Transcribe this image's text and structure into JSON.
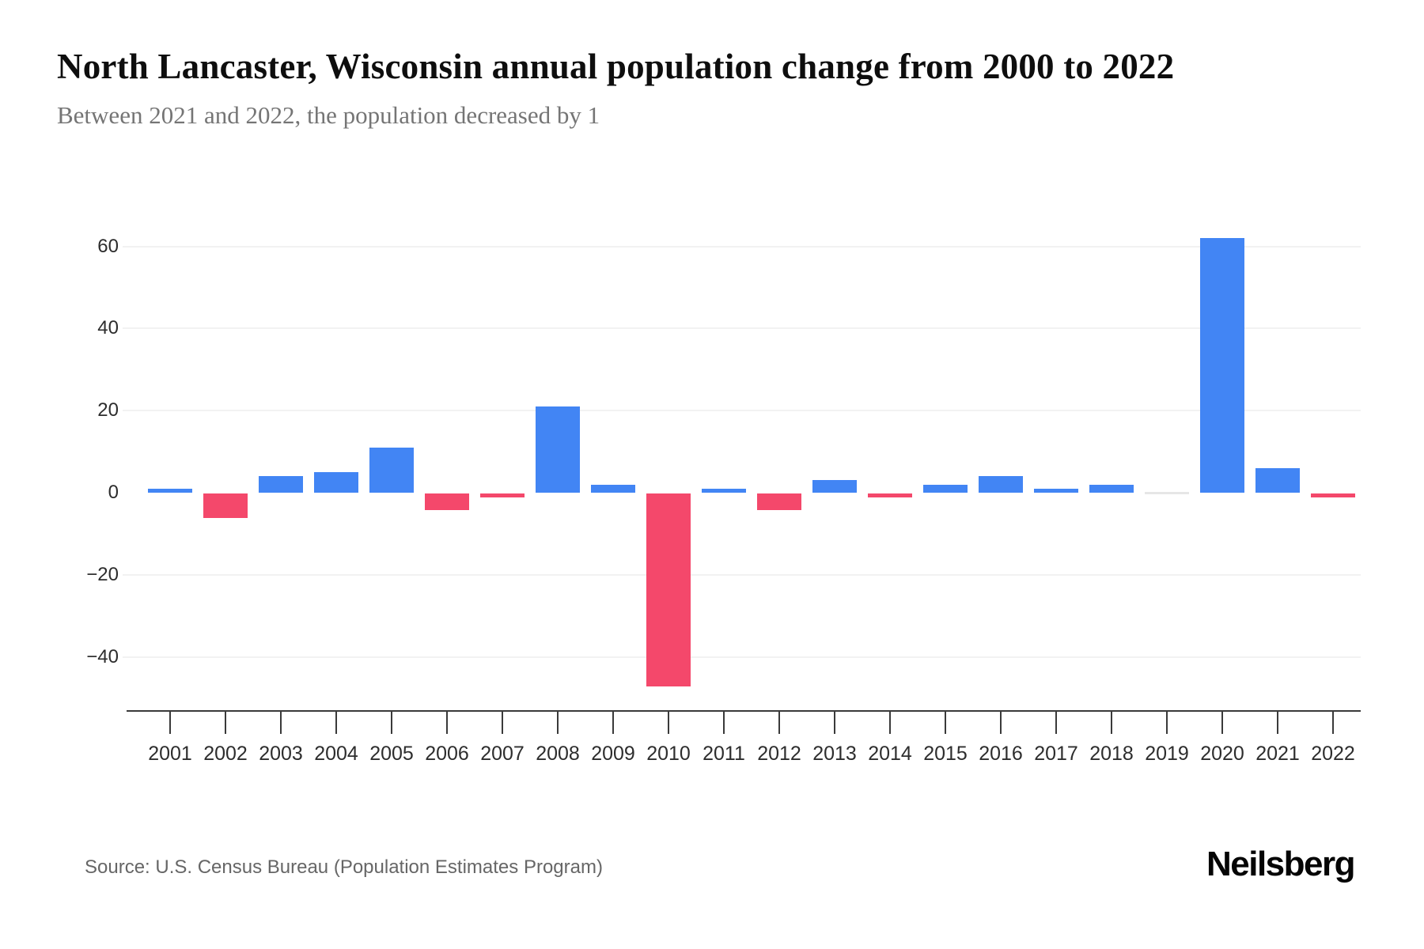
{
  "header": {
    "title": "North Lancaster, Wisconsin annual population change from 2000 to 2022",
    "subtitle": "Between 2021 and 2022, the population decreased by 1"
  },
  "footer": {
    "source": "Source: U.S. Census Bureau (Population Estimates Program)",
    "brand": "Neilsberg"
  },
  "chart_data": {
    "type": "bar",
    "title": "North Lancaster, Wisconsin annual population change from 2000 to 2022",
    "xlabel": "",
    "ylabel": "",
    "categories": [
      "2001",
      "2002",
      "2003",
      "2004",
      "2005",
      "2006",
      "2007",
      "2008",
      "2009",
      "2010",
      "2011",
      "2012",
      "2013",
      "2014",
      "2015",
      "2016",
      "2017",
      "2018",
      "2019",
      "2020",
      "2021",
      "2022"
    ],
    "values": [
      1,
      -6,
      4,
      5,
      11,
      -4,
      -1,
      21,
      2,
      -47,
      1,
      -4,
      3,
      -1,
      2,
      4,
      1,
      2,
      0,
      62,
      6,
      -1
    ],
    "ylim": [
      -50,
      65
    ],
    "yticks": [
      {
        "value": 60,
        "label": "60"
      },
      {
        "value": 40,
        "label": "40"
      },
      {
        "value": 20,
        "label": "20"
      },
      {
        "value": 0,
        "label": "0"
      },
      {
        "value": -20,
        "label": "−20"
      },
      {
        "value": -40,
        "label": "−40"
      }
    ],
    "grid": "horizontal",
    "legend_position": "none",
    "colors": {
      "positive": "#4285f4",
      "negative": "#f4486b",
      "zero": "#e6e6e6",
      "gridline": "#f2f2f2",
      "axis": "#3a3a3a",
      "tick_label": "#2d2d2d"
    }
  }
}
